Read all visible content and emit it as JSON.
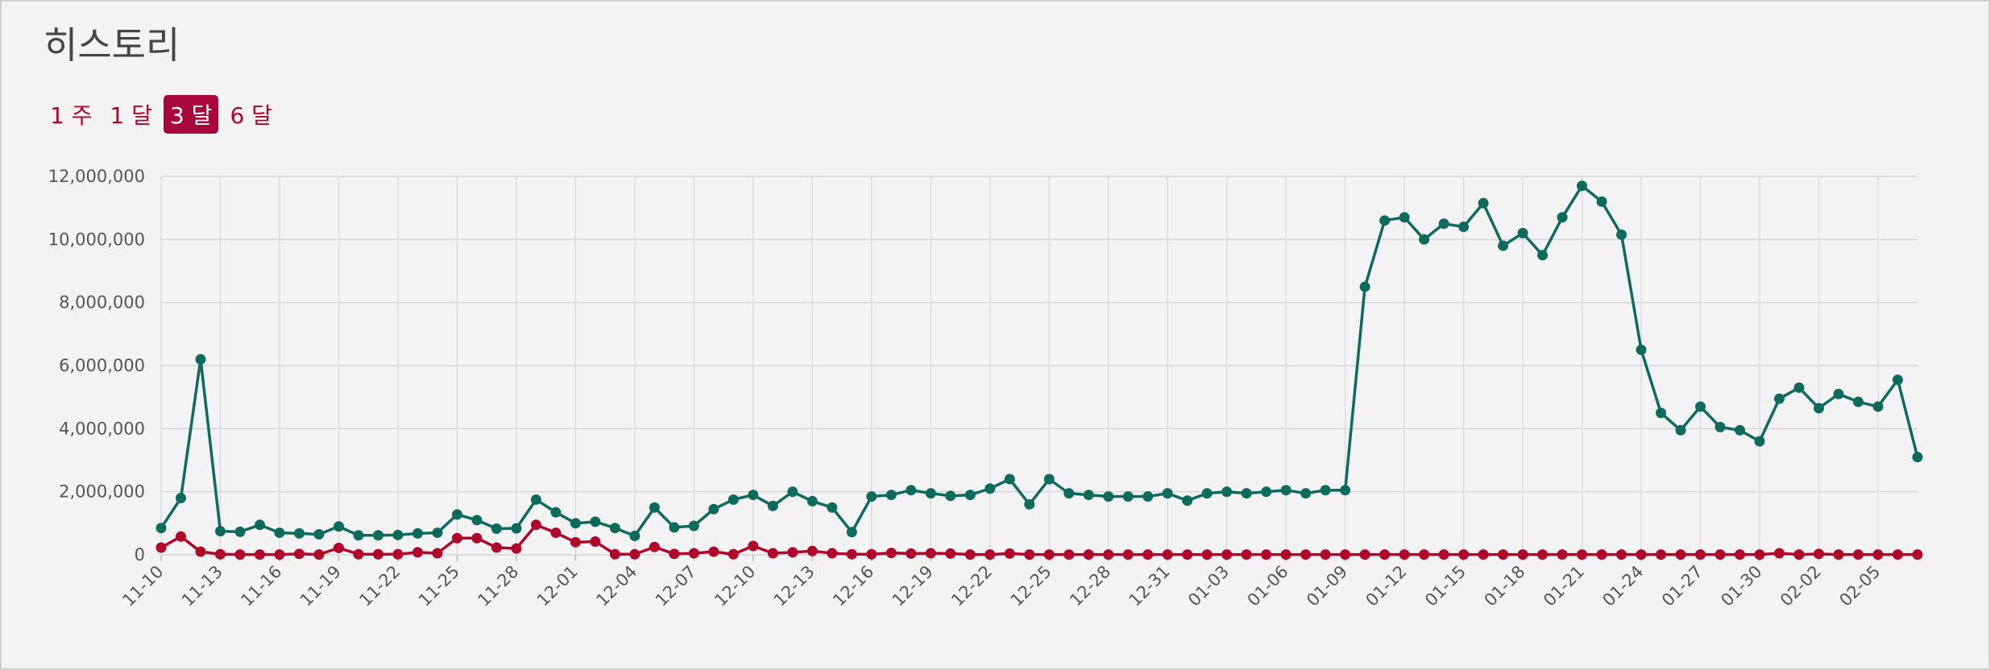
{
  "header": {
    "title": "히스토리"
  },
  "tabs": {
    "items": [
      "1 주",
      "1 달",
      "3 달",
      "6 달"
    ],
    "active": 2
  },
  "chart_data": {
    "type": "line",
    "categories": [
      "11-10",
      null,
      null,
      "11-13",
      null,
      null,
      "11-16",
      null,
      null,
      "11-19",
      null,
      null,
      "11-22",
      null,
      null,
      "11-25",
      null,
      null,
      "11-28",
      null,
      null,
      "12-01",
      null,
      null,
      "12-04",
      null,
      null,
      "12-07",
      null,
      null,
      "12-10",
      null,
      null,
      "12-13",
      null,
      null,
      "12-16",
      null,
      null,
      "12-19",
      null,
      null,
      "12-22",
      null,
      null,
      "12-25",
      null,
      null,
      "12-28",
      null,
      null,
      "12-31",
      null,
      null,
      "01-03",
      null,
      null,
      "01-06",
      null,
      null,
      "01-09",
      null,
      null,
      "01-12",
      null,
      null,
      "01-15",
      null,
      null,
      "01-18",
      null,
      null,
      "01-21",
      null,
      null,
      "01-24",
      null,
      null,
      "01-27",
      null,
      null,
      "01-30",
      null,
      null,
      "02-02",
      null,
      null,
      "02-05",
      null,
      null
    ],
    "series": [
      {
        "color": "#0e6b5c",
        "values": [
          850000,
          1800000,
          6200000,
          750000,
          730000,
          950000,
          700000,
          680000,
          650000,
          900000,
          620000,
          620000,
          630000,
          680000,
          700000,
          1280000,
          1100000,
          830000,
          840000,
          1750000,
          1350000,
          1000000,
          1050000,
          850000,
          600000,
          1500000,
          870000,
          920000,
          1450000,
          1750000,
          1900000,
          1550000,
          2000000,
          1700000,
          1500000,
          720000,
          1850000,
          1900000,
          2050000,
          1950000,
          1870000,
          1900000,
          2100000,
          2400000,
          1600000,
          2400000,
          1950000,
          1900000,
          1850000,
          1850000,
          1850000,
          1950000,
          1720000,
          1950000,
          2000000,
          1950000,
          2000000,
          2050000,
          1950000,
          2050000,
          2050000,
          8500000,
          10600000,
          10700000,
          10000000,
          10500000,
          10400000,
          11150000,
          9800000,
          10200000,
          9500000,
          10700000,
          11700000,
          11200000,
          10150000,
          6500000,
          4500000,
          3950000,
          4700000,
          4050000,
          3950000,
          3600000,
          4950000,
          5300000,
          4650000,
          5100000,
          4850000,
          4700000,
          5550000,
          3100000
        ]
      },
      {
        "color": "#b0062a",
        "values": [
          230000,
          580000,
          100000,
          20000,
          10000,
          10000,
          10000,
          30000,
          10000,
          220000,
          20000,
          20000,
          20000,
          80000,
          50000,
          530000,
          530000,
          230000,
          200000,
          950000,
          700000,
          400000,
          420000,
          20000,
          20000,
          250000,
          30000,
          50000,
          100000,
          20000,
          280000,
          50000,
          80000,
          120000,
          50000,
          20000,
          20000,
          60000,
          40000,
          50000,
          40000,
          10000,
          10000,
          40000,
          10000,
          10000,
          10000,
          10000,
          10000,
          10000,
          10000,
          10000,
          10000,
          10000,
          10000,
          10000,
          10000,
          10000,
          10000,
          10000,
          10000,
          10000,
          10000,
          10000,
          10000,
          10000,
          10000,
          10000,
          10000,
          10000,
          10000,
          10000,
          10000,
          10000,
          10000,
          10000,
          10000,
          10000,
          10000,
          10000,
          10000,
          10000,
          50000,
          10000,
          30000,
          10000,
          10000,
          10000,
          10000,
          10000
        ]
      }
    ],
    "ylim": [
      0,
      12000000
    ],
    "yticks": [
      0,
      {
        "value": 2000000,
        "label": "2,000,000"
      },
      {
        "value": 4000000,
        "label": "4,000,000"
      },
      {
        "value": 6000000,
        "label": "6,000,000"
      },
      {
        "value": 8000000,
        "label": "8,000,000"
      },
      {
        "value": 10000000,
        "label": "10,000,000"
      },
      {
        "value": 12000000,
        "label": "12,000,000"
      }
    ],
    "grid": true
  }
}
